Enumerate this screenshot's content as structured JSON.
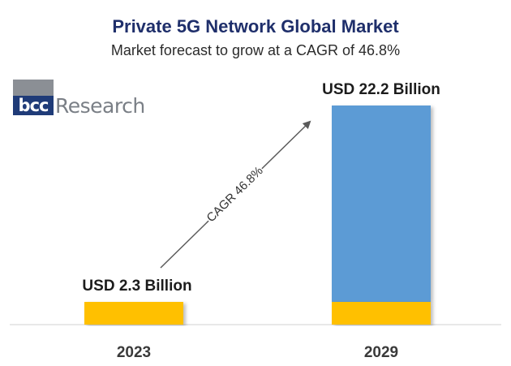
{
  "header": {
    "title": "Private 5G Network Global Market",
    "subtitle": "Market forecast to grow at a CAGR of 46.8%"
  },
  "logo": {
    "mark": "bcc",
    "word": "Research"
  },
  "colors": {
    "base": "#FFC000",
    "growth": "#5B9BD5",
    "title": "#1F2F6B"
  },
  "chart_data": {
    "type": "bar",
    "categories": [
      "2023",
      "2029"
    ],
    "values": [
      2.3,
      22.2
    ],
    "data_labels": [
      "USD 2.3 Billion",
      "USD 22.2 Billion"
    ],
    "unit": "USD Billion",
    "annotation": "CAGR 46.8%",
    "ylim": [
      0,
      24
    ],
    "grid": false,
    "legend": "none"
  }
}
